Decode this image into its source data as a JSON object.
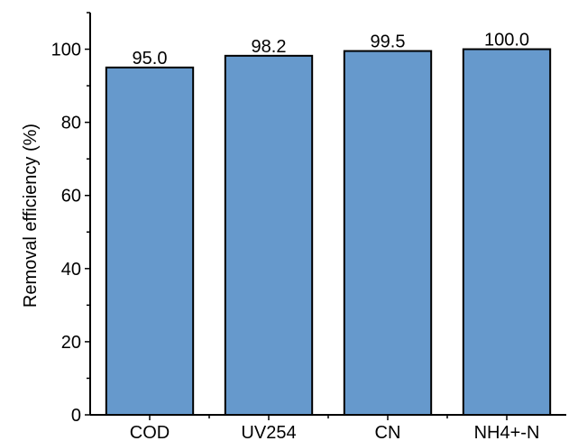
{
  "chart_data": {
    "type": "bar",
    "title": "",
    "xlabel": "",
    "ylabel": "Removal efficiency (%)",
    "categories": [
      "COD",
      "UV254",
      "CN",
      "NH4+-N"
    ],
    "values": [
      95.0,
      98.2,
      99.5,
      100.0
    ],
    "value_labels": [
      "95.0",
      "98.2",
      "99.5",
      "100.0"
    ],
    "ylim": [
      0,
      110
    ],
    "yticks": [
      0,
      20,
      40,
      60,
      80,
      100
    ],
    "ytick_labels": [
      "0",
      "20",
      "40",
      "60",
      "80",
      "100"
    ],
    "grid": false,
    "bar_color": "#6699cc",
    "bar_edge_color": "#000000"
  }
}
